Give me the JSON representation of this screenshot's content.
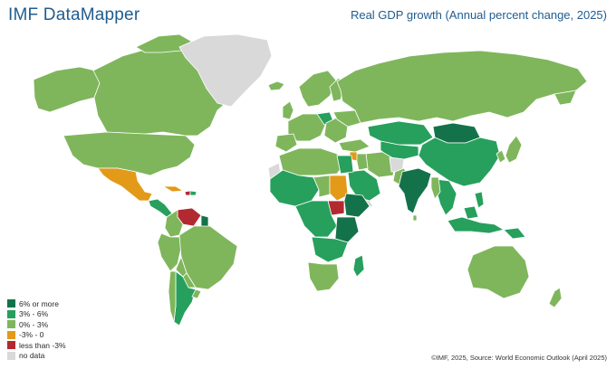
{
  "header": {
    "app_title": "IMF DataMapper",
    "chart_title": "Real GDP growth (Annual percent change, 2025)"
  },
  "legend": {
    "items": [
      {
        "label": "6% or more",
        "color": "#14724a"
      },
      {
        "label": "3% - 6%",
        "color": "#26a05c"
      },
      {
        "label": "0% - 3%",
        "color": "#7fb65c"
      },
      {
        "label": "-3% - 0",
        "color": "#e39a19"
      },
      {
        "label": "less than -3%",
        "color": "#b22a30"
      },
      {
        "label": "no data",
        "color": "#d9d9d9"
      }
    ]
  },
  "footer": {
    "source": "©IMF, 2025, Source: World Economic Outlook (April 2025)"
  },
  "map": {
    "ocean_color": "#ffffff",
    "border_color": "#ffffff"
  }
}
